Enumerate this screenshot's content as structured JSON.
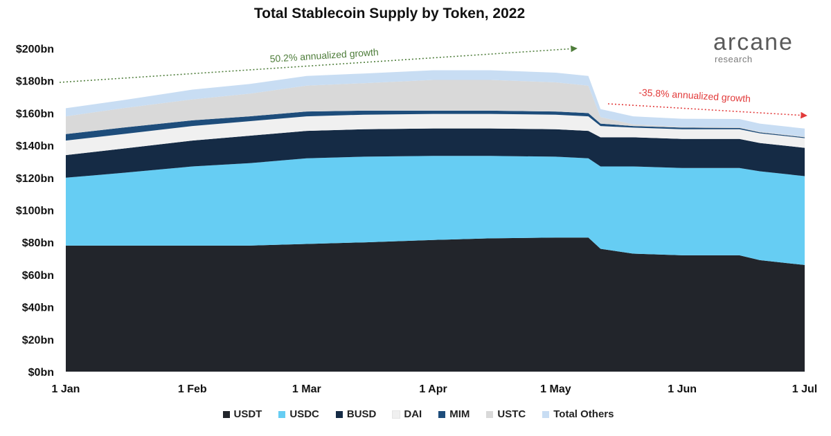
{
  "title": "Total Stablecoin Supply by Token, 2022",
  "logo": {
    "word": "arcane",
    "sub": "research"
  },
  "annotations": {
    "growth": "50.2% annualized growth",
    "decline": "-35.8% annualized growth",
    "growth_color": "#4e7d3a",
    "decline_color": "#e23a3a"
  },
  "chart_data": {
    "type": "area",
    "stacked": true,
    "title": "Total Stablecoin Supply by Token, 2022",
    "x": [
      "1 Jan",
      "15 Jan",
      "1 Feb",
      "15 Feb",
      "1 Mar",
      "15 Mar",
      "1 Apr",
      "15 Apr",
      "1 May",
      "9 May",
      "12 May",
      "20 May",
      "1 Jun",
      "15 Jun",
      "20 Jun",
      "1 Jul"
    ],
    "x_ticks": [
      "1 Jan",
      "1 Feb",
      "1 Mar",
      "1 Apr",
      "1 May",
      "1 Jun",
      "1 Jul"
    ],
    "y_ticks": [
      "$0bn",
      "$20bn",
      "$40bn",
      "$60bn",
      "$80bn",
      "$100bn",
      "$120bn",
      "$140bn",
      "$160bn",
      "$180bn",
      "$200bn"
    ],
    "ylim": [
      0,
      200
    ],
    "series": [
      {
        "name": "USDT",
        "color": "#22252b",
        "values": [
          78,
          78,
          78,
          78,
          79,
          80,
          81.5,
          82.5,
          83,
          83,
          76,
          73,
          72,
          72,
          69,
          66
        ]
      },
      {
        "name": "USDC",
        "color": "#66cdf3",
        "values": [
          42,
          45,
          49,
          51,
          53,
          53,
          52,
          51,
          50,
          49,
          51,
          54,
          54,
          54,
          55,
          55
        ]
      },
      {
        "name": "BUSD",
        "color": "#152b45",
        "values": [
          14,
          15,
          16,
          17,
          17,
          17,
          17,
          17,
          17,
          17,
          18,
          18,
          18,
          18,
          17.5,
          17.5
        ]
      },
      {
        "name": "DAI",
        "color": "#f0f0f0",
        "values": [
          9,
          9,
          9,
          9,
          9,
          9,
          9,
          9,
          9,
          9,
          7,
          6,
          6,
          6,
          6,
          6
        ]
      },
      {
        "name": "MIM",
        "color": "#1e4d7b",
        "values": [
          4,
          4,
          3.5,
          3,
          3,
          2.5,
          2,
          2,
          2,
          2,
          1.5,
          1,
          1,
          0.8,
          0.6,
          0.5
        ]
      },
      {
        "name": "USTC",
        "color": "#d9d9d9",
        "values": [
          11,
          12,
          13,
          14,
          16,
          17,
          19,
          19,
          18,
          17,
          4,
          1,
          0.5,
          0.5,
          0.4,
          0.4
        ]
      },
      {
        "name": "Total Others",
        "color": "#c8ddf3",
        "values": [
          5,
          5,
          6,
          6,
          6,
          6,
          6,
          6,
          6,
          6,
          5,
          5,
          5,
          5,
          5,
          5
        ]
      }
    ]
  }
}
